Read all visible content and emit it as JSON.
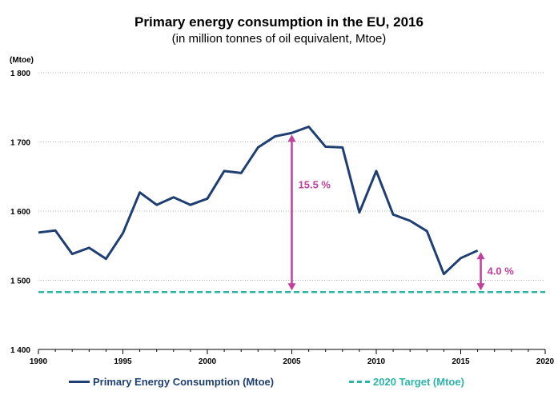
{
  "chart_data": {
    "type": "line",
    "title": "Primary energy consumption in the EU, 2016",
    "subtitle": "(in million tonnes of oil equivalent, Mtoe)",
    "ylabel": "(Mtoe)",
    "xlabel": "",
    "xlim": [
      1990,
      2020
    ],
    "ylim": [
      1400,
      1800
    ],
    "x_ticks": [
      "1990",
      "1995",
      "2000",
      "2005",
      "2010",
      "2015",
      "2020"
    ],
    "y_ticks": [
      "1 400",
      "1 500",
      "1 600",
      "1 700",
      "1 800"
    ],
    "grid": true,
    "legend_position": "bottom",
    "series": [
      {
        "name": "Primary Energy Consumption (Mtoe)",
        "color": "#1f3f73",
        "style": "solid",
        "x": [
          1990,
          1991,
          1992,
          1993,
          1994,
          1995,
          1996,
          1997,
          1998,
          1999,
          2000,
          2001,
          2002,
          2003,
          2004,
          2005,
          2006,
          2007,
          2008,
          2009,
          2010,
          2011,
          2012,
          2013,
          2014,
          2015,
          2016
        ],
        "values": [
          1569,
          1572,
          1538,
          1547,
          1531,
          1568,
          1627,
          1609,
          1620,
          1609,
          1618,
          1658,
          1655,
          1692,
          1708,
          1713,
          1722,
          1693,
          1692,
          1598,
          1658,
          1595,
          1586,
          1571,
          1509,
          1532,
          1543
        ]
      },
      {
        "name": "2020 Target (Mtoe)",
        "color": "#2bb5a8",
        "style": "dashed",
        "x": [
          1990,
          2020
        ],
        "values": [
          1483,
          1483
        ]
      }
    ],
    "annotations": [
      {
        "label": "15.5 %",
        "x": 2005,
        "from": 1713,
        "to": 1483,
        "color": "#c2409b"
      },
      {
        "label": "4.0 %",
        "x": 2016,
        "from": 1543,
        "to": 1483,
        "color": "#c2409b"
      }
    ]
  }
}
